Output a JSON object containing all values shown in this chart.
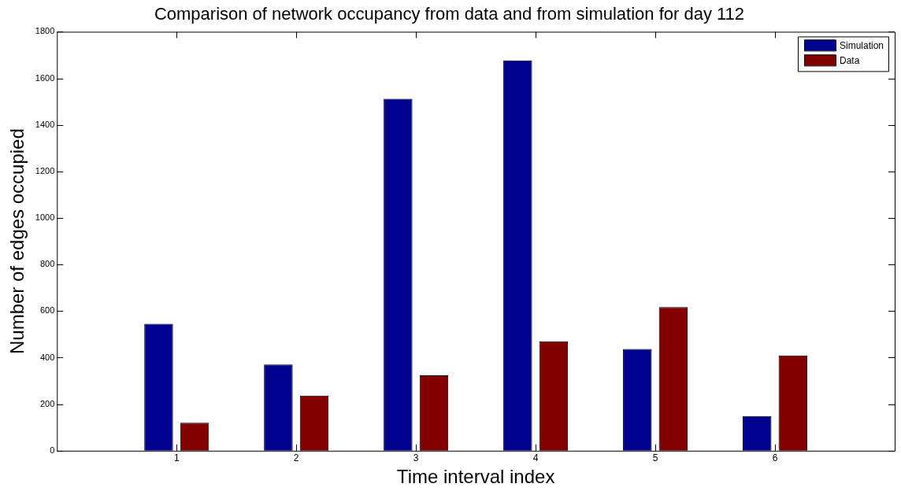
{
  "chart_data": {
    "type": "bar",
    "title": "Comparison of network occupancy from data and from simulation for day 112",
    "xlabel": "Time interval index",
    "ylabel": "Number of edges occupied",
    "x": [
      1,
      2,
      3,
      4,
      5,
      6
    ],
    "xlim": [
      0,
      7
    ],
    "xticks": [
      1,
      2,
      3,
      4,
      5,
      6
    ],
    "ylim": [
      0,
      1800
    ],
    "yticks": [
      0,
      200,
      400,
      600,
      800,
      1000,
      1200,
      1400,
      1600,
      1800
    ],
    "series": [
      {
        "name": "Simulation",
        "color": "#00008f",
        "values": [
          545,
          370,
          1512,
          1677,
          437,
          149
        ]
      },
      {
        "name": "Data",
        "color": "#800000",
        "values": [
          120,
          237,
          324,
          470,
          617,
          409
        ]
      }
    ],
    "grid": false,
    "legend": "top right"
  }
}
